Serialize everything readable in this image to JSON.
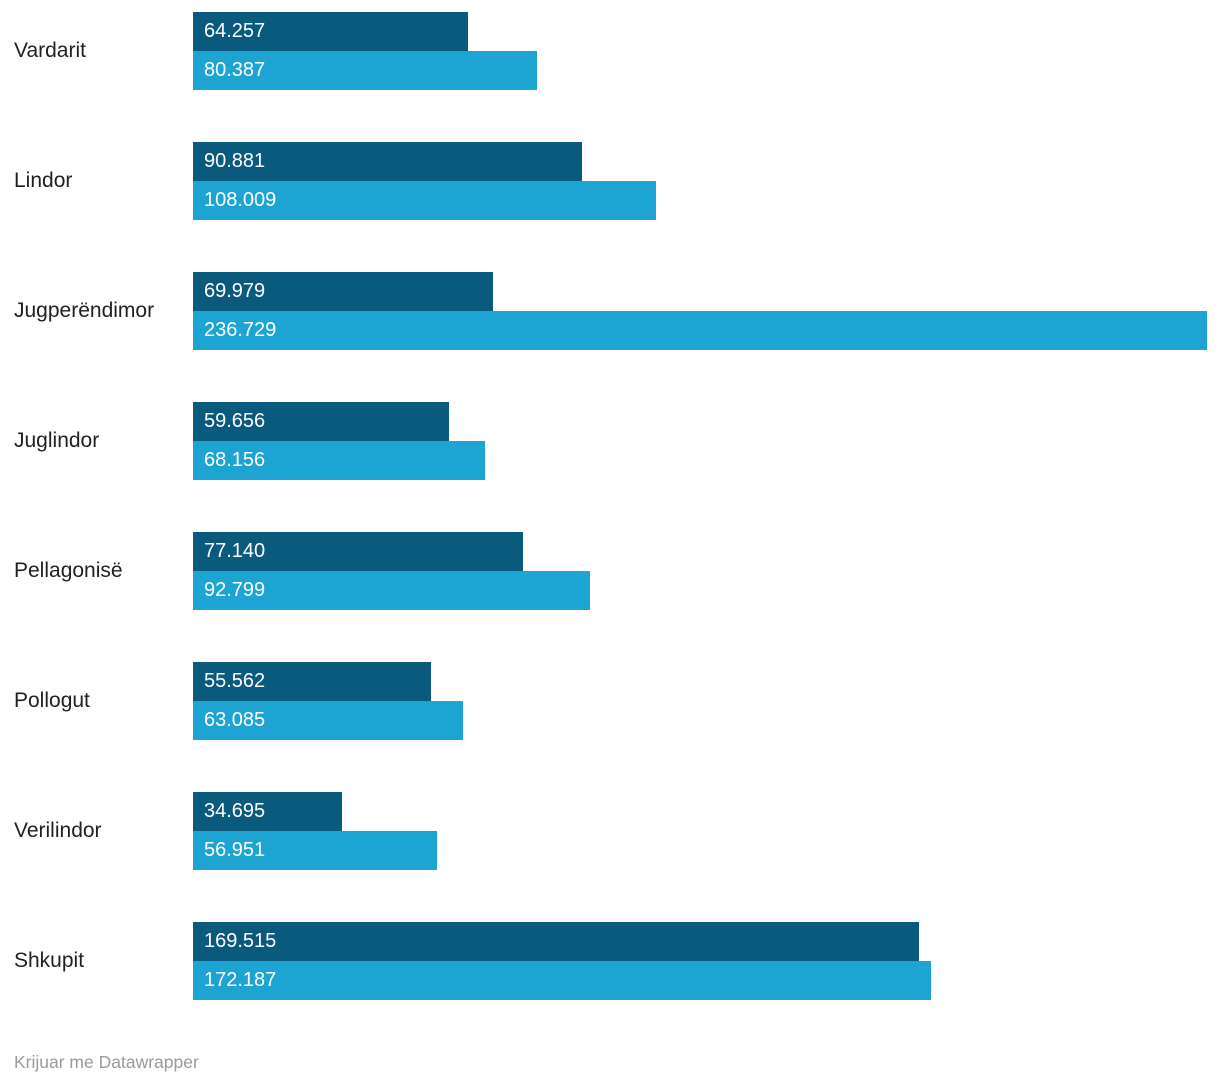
{
  "chart_data": {
    "type": "bar",
    "orientation": "horizontal",
    "title": "",
    "xlabel": "",
    "ylabel": "",
    "grid": false,
    "legend_position": "none",
    "xlim": [
      0,
      236729
    ],
    "categories": [
      "Vardarit",
      "Lindor",
      "Jugperëndimor",
      "Juglindor",
      "Pellagonisë",
      "Pollogut",
      "Verilindor",
      "Shkupit"
    ],
    "series": [
      {
        "name": "series-top",
        "color": "#0a5a7d",
        "values": [
          64257,
          90881,
          69979,
          59656,
          77140,
          55562,
          34695,
          169515
        ],
        "labels": [
          "64.257",
          "90.881",
          "69.979",
          "59.656",
          "77.140",
          "55.562",
          "34.695",
          "169.515"
        ]
      },
      {
        "name": "series-bottom",
        "color": "#1da4d3",
        "values": [
          80387,
          108009,
          236729,
          68156,
          92799,
          63085,
          56951,
          172187
        ],
        "labels": [
          "80.387",
          "108.009",
          "236.729",
          "68.156",
          "92.799",
          "63.085",
          "56.951",
          "172.187"
        ]
      }
    ],
    "value_label_color": "#ffffff",
    "category_label_color": "#1f1f24",
    "footer": "Krijuar me Datawrapper"
  }
}
